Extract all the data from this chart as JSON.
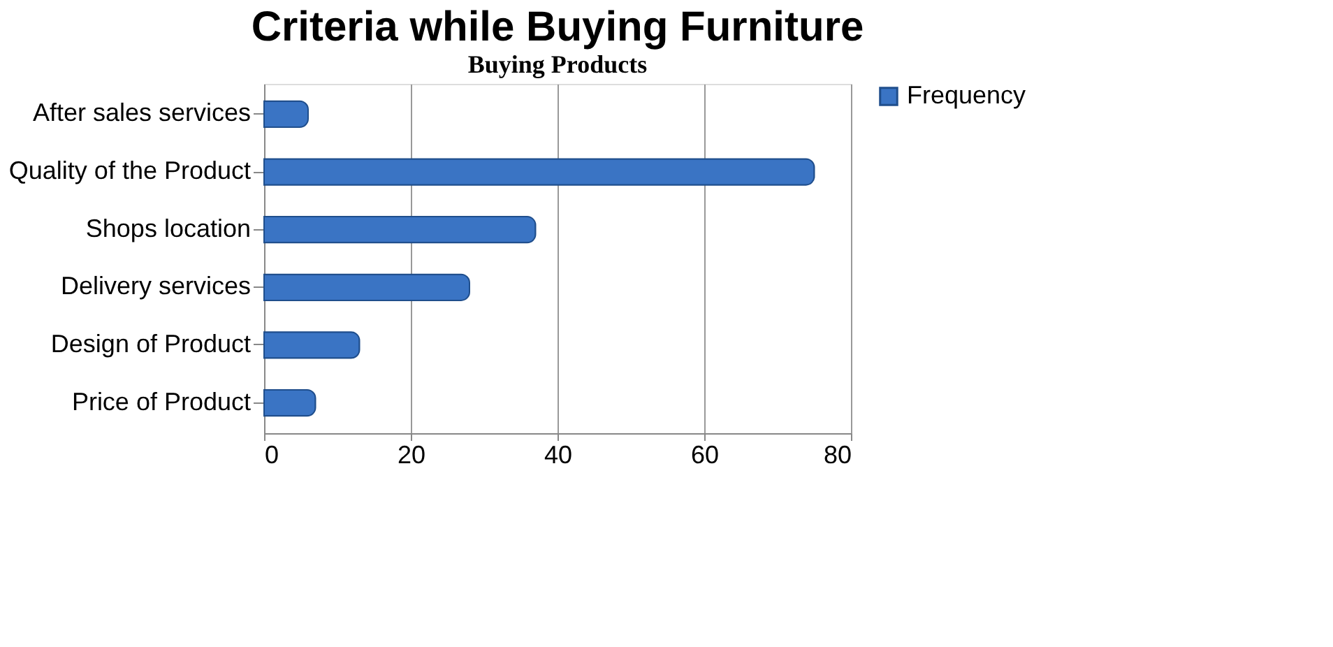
{
  "chart_data": {
    "type": "bar",
    "orientation": "horizontal",
    "title": "Criteria while Buying Furniture",
    "annotations": [
      "Buying Products"
    ],
    "categories": [
      "After sales services",
      "Quality of the Product",
      "Shops location",
      "Delivery services",
      "Design of Product",
      "Price of Product"
    ],
    "series": [
      {
        "name": "Frequency",
        "color": "#3a74c4",
        "values": [
          6,
          75,
          37,
          28,
          13,
          7
        ]
      }
    ],
    "xlim": [
      0,
      80
    ],
    "xticks": [
      0,
      20,
      40,
      60,
      80
    ],
    "grid": "x",
    "legend": "right"
  }
}
